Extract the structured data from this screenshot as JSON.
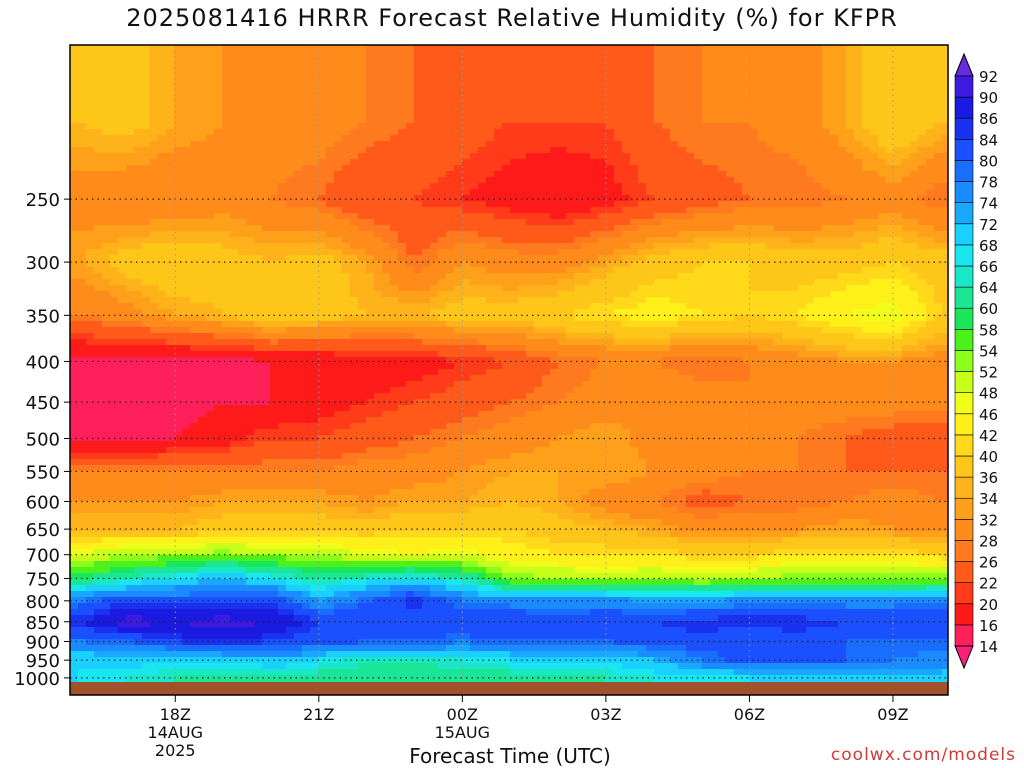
{
  "title": "2025081416 HRRR Forecast Relative Humidity (%) for KFPR",
  "xlabel": "Forecast Time (UTC)",
  "credit": "coolwx.com/models",
  "chart_data": {
    "type": "heatmap",
    "title": "2025081416 HRRR Forecast Relative Humidity (%) for KFPR",
    "xlabel": "Forecast Time (UTC)",
    "ylabel": "",
    "x_ticks": [
      {
        "label": "18Z",
        "sub": [
          "14AUG",
          "2025"
        ]
      },
      {
        "label": "21Z",
        "sub": []
      },
      {
        "label": "00Z",
        "sub": [
          "15AUG"
        ]
      },
      {
        "label": "03Z",
        "sub": []
      },
      {
        "label": "06Z",
        "sub": []
      },
      {
        "label": "09Z",
        "sub": []
      }
    ],
    "x_hours": [
      16,
      17,
      18,
      19,
      20,
      21,
      22,
      23,
      24,
      25,
      26,
      27,
      28,
      29,
      30,
      31,
      32,
      33,
      34
    ],
    "y_levels": [
      200,
      250,
      300,
      350,
      400,
      450,
      500,
      550,
      600,
      650,
      700,
      750,
      800,
      850,
      900,
      950,
      1000
    ],
    "y_tick_labels": [
      "250",
      "300",
      "350",
      "400",
      "450",
      "500",
      "550",
      "600",
      "650",
      "700",
      "750",
      "800",
      "850",
      "900",
      "950",
      "1000"
    ],
    "grid": true,
    "colorbar": {
      "levels": [
        14,
        16,
        20,
        22,
        26,
        28,
        32,
        34,
        36,
        40,
        42,
        46,
        48,
        52,
        54,
        58,
        60,
        64,
        66,
        68,
        72,
        74,
        78,
        80,
        84,
        86,
        90,
        92
      ],
      "colors": [
        "#ff1f7b",
        "#ff1f5a",
        "#ff1a1a",
        "#ff3b1a",
        "#ff5a1a",
        "#ff7a1f",
        "#ff8c1a",
        "#ffa01a",
        "#ffb31a",
        "#ffc61a",
        "#ffd91a",
        "#fff01a",
        "#f0ff1a",
        "#c8ff1a",
        "#8cff1a",
        "#4cf01a",
        "#1ae65a",
        "#1ae696",
        "#1ae6c8",
        "#1ae6f0",
        "#1ad0ff",
        "#1aa8ff",
        "#1a8cff",
        "#1a6eff",
        "#1a50ff",
        "#1a32f0",
        "#1a1ae0",
        "#3c1ae0",
        "#6a2ae0"
      ]
    },
    "values": [
      [
        36,
        38,
        34,
        32,
        30,
        30,
        28,
        26,
        24,
        22,
        22,
        22,
        26,
        28,
        28,
        30,
        34,
        40,
        36
      ],
      [
        30,
        28,
        28,
        30,
        28,
        26,
        22,
        22,
        20,
        18,
        16,
        18,
        22,
        24,
        26,
        26,
        28,
        30,
        26
      ],
      [
        34,
        38,
        40,
        38,
        36,
        38,
        34,
        26,
        32,
        30,
        30,
        34,
        38,
        40,
        40,
        38,
        38,
        40,
        38
      ],
      [
        28,
        30,
        34,
        36,
        40,
        38,
        36,
        36,
        38,
        38,
        40,
        42,
        44,
        42,
        40,
        42,
        46,
        48,
        40
      ],
      [
        14,
        14,
        14,
        14,
        16,
        16,
        18,
        18,
        20,
        22,
        26,
        28,
        28,
        26,
        28,
        30,
        32,
        32,
        30
      ],
      [
        14,
        14,
        14,
        16,
        16,
        18,
        20,
        22,
        24,
        26,
        28,
        30,
        32,
        30,
        28,
        30,
        30,
        30,
        30
      ],
      [
        14,
        14,
        16,
        18,
        22,
        22,
        24,
        26,
        28,
        30,
        32,
        34,
        30,
        28,
        30,
        28,
        26,
        24,
        22
      ],
      [
        28,
        28,
        28,
        28,
        28,
        28,
        30,
        30,
        32,
        34,
        34,
        34,
        32,
        30,
        28,
        28,
        26,
        26,
        26
      ],
      [
        32,
        32,
        32,
        34,
        34,
        34,
        32,
        34,
        34,
        36,
        34,
        30,
        28,
        24,
        26,
        26,
        28,
        30,
        28
      ],
      [
        36,
        36,
        36,
        38,
        38,
        38,
        38,
        40,
        40,
        40,
        38,
        36,
        34,
        30,
        32,
        32,
        34,
        32,
        32
      ],
      [
        48,
        52,
        52,
        54,
        52,
        52,
        48,
        46,
        48,
        44,
        42,
        42,
        42,
        40,
        40,
        42,
        42,
        42,
        40
      ],
      [
        60,
        64,
        68,
        72,
        68,
        62,
        66,
        68,
        64,
        54,
        52,
        50,
        52,
        50,
        52,
        54,
        54,
        54,
        54
      ],
      [
        78,
        84,
        82,
        82,
        84,
        74,
        80,
        86,
        78,
        76,
        76,
        76,
        74,
        74,
        76,
        76,
        76,
        76,
        78
      ],
      [
        86,
        92,
        90,
        92,
        90,
        84,
        84,
        82,
        84,
        84,
        82,
        84,
        84,
        86,
        86,
        86,
        84,
        84,
        84
      ],
      [
        78,
        80,
        84,
        86,
        84,
        82,
        80,
        80,
        78,
        80,
        80,
        80,
        82,
        82,
        80,
        82,
        80,
        80,
        80
      ],
      [
        68,
        70,
        68,
        68,
        72,
        68,
        64,
        64,
        66,
        68,
        70,
        68,
        72,
        78,
        82,
        80,
        80,
        78,
        76
      ],
      [
        68,
        66,
        64,
        62,
        62,
        62,
        62,
        62,
        62,
        62,
        62,
        64,
        66,
        66,
        68,
        68,
        70,
        70,
        70
      ]
    ]
  }
}
